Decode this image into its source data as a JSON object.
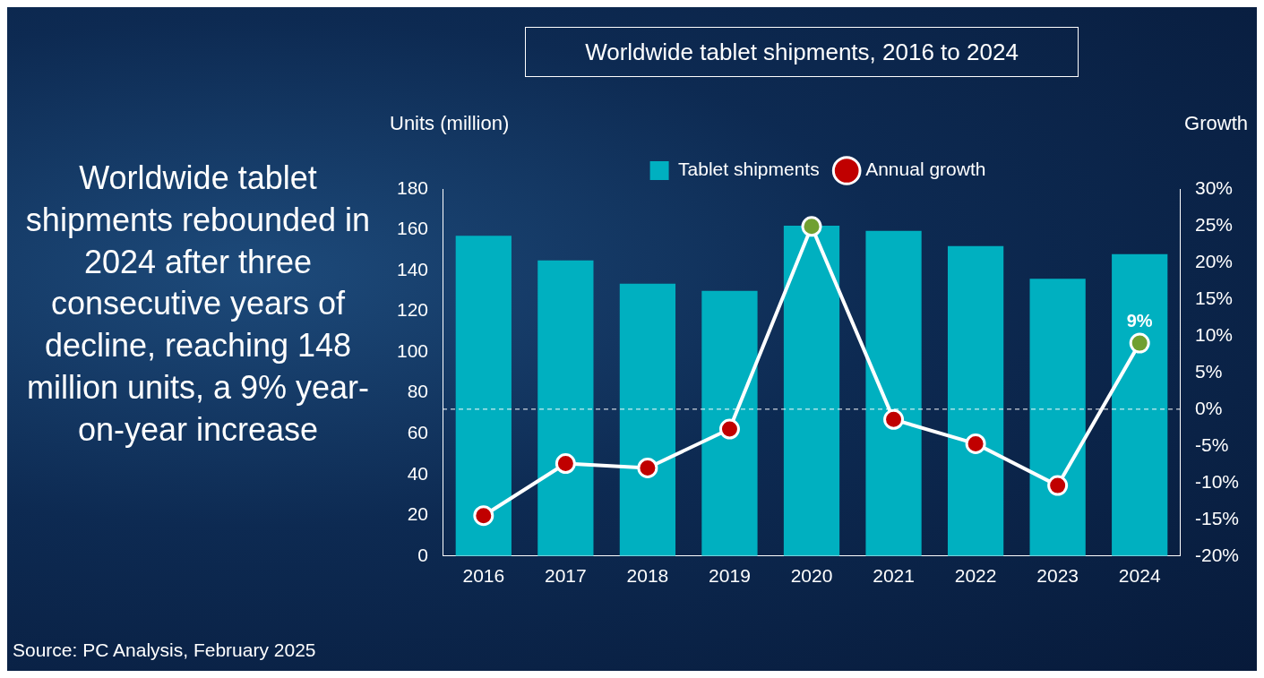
{
  "chart_data": {
    "type": "bar",
    "title": "Worldwide tablet shipments, 2016 to 2024",
    "ylabel": "Units (million)",
    "y2label": "Growth",
    "categories": [
      "2016",
      "2017",
      "2018",
      "2019",
      "2020",
      "2021",
      "2022",
      "2023",
      "2024"
    ],
    "series": [
      {
        "name": "Tablet shipments",
        "color": "#00b0c0",
        "values": [
          157,
          145,
          133.5,
          130,
          162,
          159.5,
          152,
          136,
          148
        ]
      },
      {
        "name": "Annual growth",
        "type": "line",
        "axis": "y2",
        "color": "#ffffff",
        "colors": [
          "#c00000",
          "#c00000",
          "#c00000",
          "#c00000",
          "#70a030",
          "#c00000",
          "#c00000",
          "#c00000",
          "#70a030"
        ],
        "values": [
          -14.5,
          -7.4,
          -8,
          -2.7,
          24.9,
          -1.4,
          -4.7,
          -10.4,
          9
        ],
        "value_labels": [
          null,
          null,
          null,
          null,
          null,
          null,
          null,
          null,
          "9%"
        ]
      }
    ],
    "ylim": [
      0,
      180
    ],
    "yticks": [
      0,
      20,
      40,
      60,
      80,
      100,
      120,
      140,
      160,
      180
    ],
    "y2lim": [
      -20,
      30
    ],
    "y2ticks": [
      {
        "value": -20,
        "label": "-20%"
      },
      {
        "value": -15,
        "label": "-15%"
      },
      {
        "value": -10,
        "label": "-10%"
      },
      {
        "value": -5,
        "label": "-5%"
      },
      {
        "value": 0,
        "label": "0%"
      },
      {
        "value": 5,
        "label": "5%"
      },
      {
        "value": 10,
        "label": "10%"
      },
      {
        "value": 15,
        "label": "15%"
      },
      {
        "value": 20,
        "label": "20%"
      },
      {
        "value": 25,
        "label": "25%"
      },
      {
        "value": 30,
        "label": "30%"
      }
    ],
    "ref_lines": [
      {
        "axis": "y2",
        "value": 0,
        "color": "#ffffff",
        "line_style": "dashed"
      }
    ],
    "marker": "circle",
    "grid": false,
    "legend": "top",
    "annotations": [
      "Worldwide tablet shipments rebounded in 2024 after three consecutive years of decline, reaching 148 million units, a 9% year-on-year increase",
      "Source: PC Analysis, February 2025"
    ]
  }
}
